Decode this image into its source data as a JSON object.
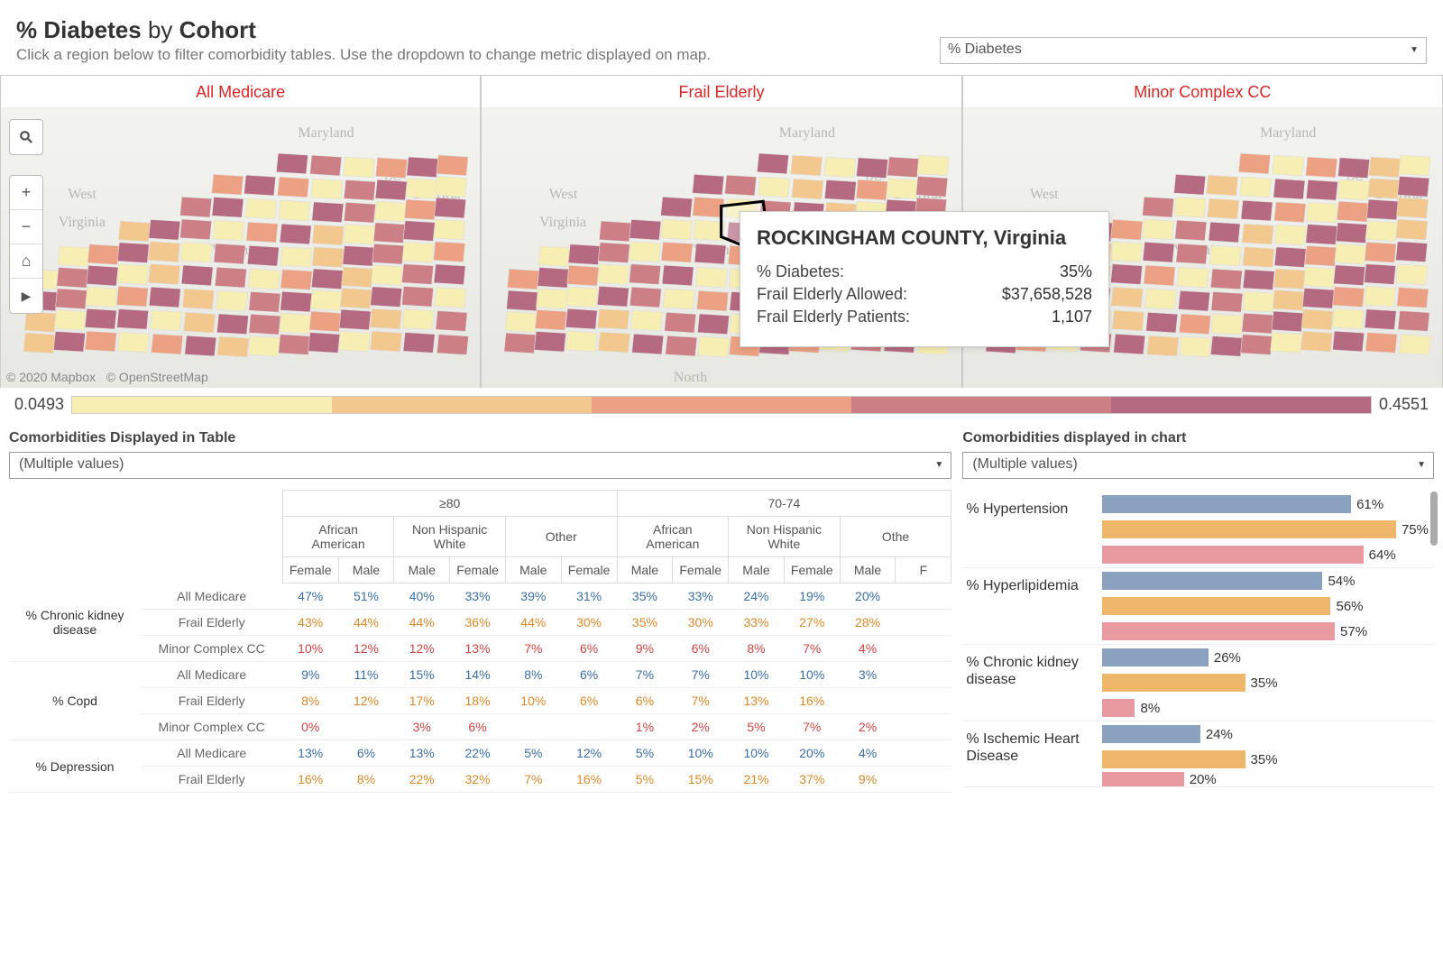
{
  "header": {
    "title_a": "% Diabetes",
    "title_b": " by ",
    "title_c": "Cohort",
    "subtitle": "Click a region below to filter comorbidity tables. Use the dropdown to change metric displayed on map.",
    "metric_select": "% Diabetes"
  },
  "cohorts": [
    {
      "label": "All Medicare"
    },
    {
      "label": "Frail Elderly"
    },
    {
      "label": "Minor Complex CC"
    }
  ],
  "map_controls": {
    "search": "⚲",
    "zoom_in": "+",
    "zoom_out": "−",
    "home": "⌂",
    "play": "▶"
  },
  "bg_labels": {
    "maryland": "Maryland",
    "dc": "DC",
    "delaware": "Delawar",
    "west_virginia_1": "West",
    "west_virginia_2": "Virginia",
    "virginia": "Virginia",
    "north": "North"
  },
  "attribution": {
    "mapbox": "© 2020 Mapbox",
    "osm": "© OpenStreetMap"
  },
  "tooltip": {
    "title": "ROCKINGHAM COUNTY, Virginia",
    "rows": [
      {
        "label": "% Diabetes:",
        "value": "35%"
      },
      {
        "label": "Frail Elderly Allowed:",
        "value": "$37,658,528"
      },
      {
        "label": "Frail Elderly Patients:",
        "value": "1,107"
      }
    ]
  },
  "legend": {
    "min": "0.0493",
    "max": "0.4551",
    "colors": [
      "#f7eeb3",
      "#f3c88f",
      "#eca183",
      "#cc7f85",
      "#b56a82"
    ]
  },
  "table_panel": {
    "label": "Comorbidities Displayed in Table",
    "select": "(Multiple values)",
    "age_groups": [
      "≥80",
      "70-74"
    ],
    "race_groups": [
      "African American",
      "Non Hispanic White",
      "Other"
    ],
    "sexes": [
      "Female",
      "Male"
    ],
    "truncated_sex": "F",
    "other_truncated": "Othe",
    "metrics": [
      {
        "label": "% Chronic kidney disease",
        "rows": [
          {
            "cohort": "All Medicare",
            "class": "v-blue",
            "vals": [
              "47%",
              "51%",
              "40%",
              "33%",
              "39%",
              "31%",
              "35%",
              "33%",
              "24%",
              "19%",
              "20%",
              ""
            ]
          },
          {
            "cohort": "Frail Elderly",
            "class": "v-orange",
            "vals": [
              "43%",
              "44%",
              "44%",
              "36%",
              "44%",
              "30%",
              "35%",
              "30%",
              "33%",
              "27%",
              "28%",
              ""
            ]
          },
          {
            "cohort": "Minor Complex CC",
            "class": "v-red",
            "vals": [
              "10%",
              "12%",
              "12%",
              "13%",
              "7%",
              "6%",
              "9%",
              "6%",
              "8%",
              "7%",
              "4%",
              ""
            ]
          }
        ]
      },
      {
        "label": "% Copd",
        "rows": [
          {
            "cohort": "All Medicare",
            "class": "v-blue",
            "vals": [
              "9%",
              "11%",
              "15%",
              "14%",
              "8%",
              "6%",
              "7%",
              "7%",
              "10%",
              "10%",
              "3%",
              ""
            ]
          },
          {
            "cohort": "Frail Elderly",
            "class": "v-orange",
            "vals": [
              "8%",
              "12%",
              "17%",
              "18%",
              "10%",
              "6%",
              "6%",
              "7%",
              "13%",
              "16%",
              "",
              ""
            ]
          },
          {
            "cohort": "Minor Complex CC",
            "class": "v-red",
            "vals": [
              "0%",
              "",
              "3%",
              "6%",
              "",
              "",
              "1%",
              "2%",
              "5%",
              "7%",
              "2%",
              ""
            ]
          }
        ]
      },
      {
        "label": "% Depression",
        "rows": [
          {
            "cohort": "All Medicare",
            "class": "v-blue",
            "vals": [
              "13%",
              "6%",
              "13%",
              "22%",
              "5%",
              "12%",
              "5%",
              "10%",
              "10%",
              "20%",
              "4%",
              ""
            ]
          },
          {
            "cohort": "Frail Elderly",
            "class": "v-orange",
            "vals": [
              "16%",
              "8%",
              "22%",
              "32%",
              "7%",
              "16%",
              "5%",
              "15%",
              "21%",
              "37%",
              "9%",
              ""
            ]
          }
        ]
      }
    ]
  },
  "chart_panel": {
    "label": "Comorbidities displayed in chart",
    "select": "(Multiple values)",
    "colors": {
      "blue": "#8aa1c0",
      "orange": "#efb76a",
      "pink": "#e99aa0"
    },
    "max_pct": 80,
    "groups": [
      {
        "label": "% Hypertension",
        "bars": [
          {
            "c": "blue",
            "v": 61
          },
          {
            "c": "orange",
            "v": 75
          },
          {
            "c": "pink",
            "v": 64
          }
        ]
      },
      {
        "label": "% Hyperlipidemia",
        "bars": [
          {
            "c": "blue",
            "v": 54
          },
          {
            "c": "orange",
            "v": 56
          },
          {
            "c": "pink",
            "v": 57
          }
        ]
      },
      {
        "label": "% Chronic kidney disease",
        "bars": [
          {
            "c": "blue",
            "v": 26
          },
          {
            "c": "orange",
            "v": 35
          },
          {
            "c": "pink",
            "v": 8
          }
        ]
      },
      {
        "label": "% Ischemic Heart Disease",
        "bars": [
          {
            "c": "blue",
            "v": 24
          },
          {
            "c": "orange",
            "v": 35
          },
          {
            "c": "pink",
            "v": 20
          }
        ]
      }
    ]
  }
}
